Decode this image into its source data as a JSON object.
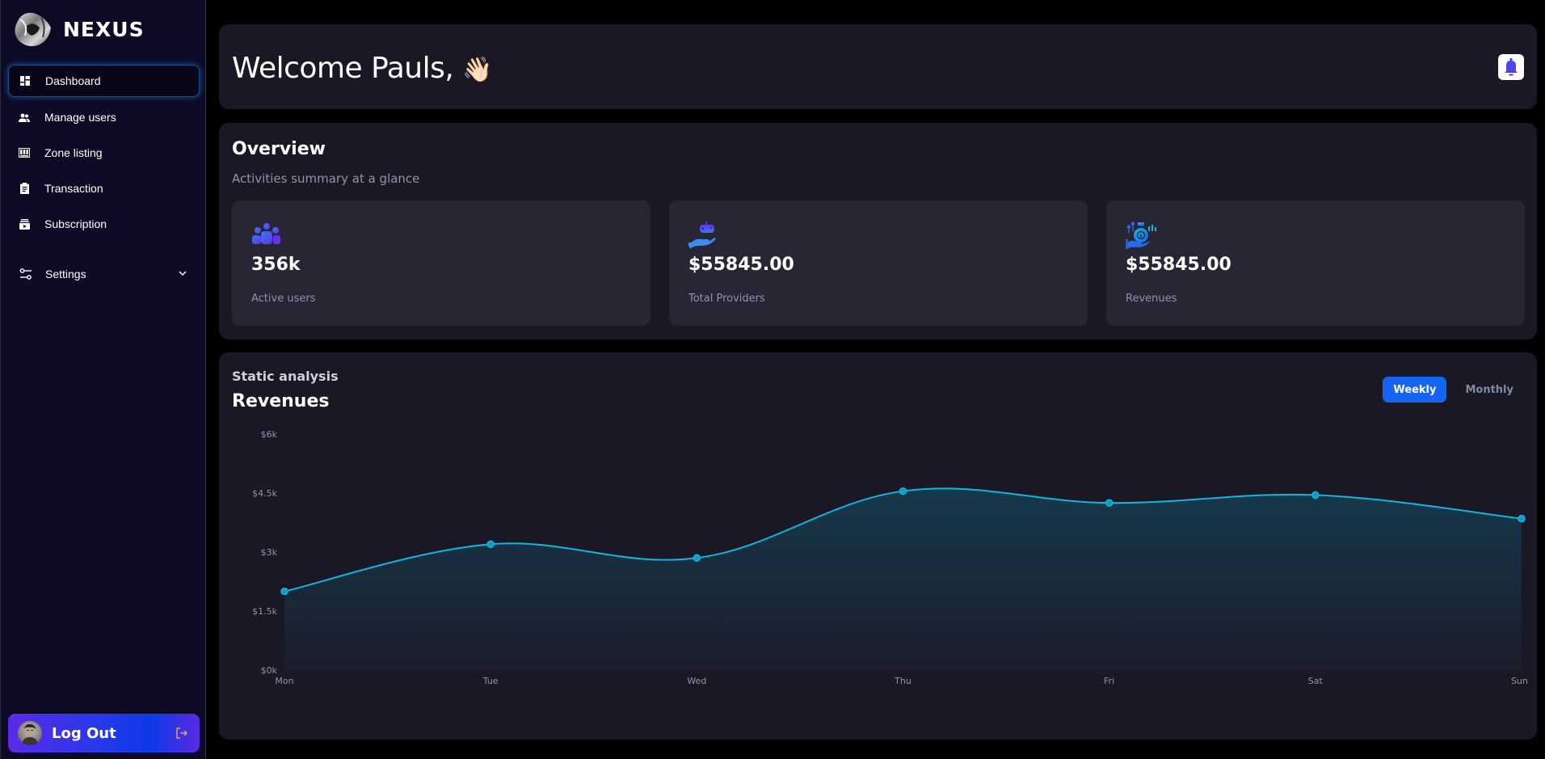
{
  "brand": {
    "name": "NEXUS"
  },
  "sidebar": {
    "items": [
      {
        "label": "Dashboard",
        "icon": "dashboard-icon",
        "active": true
      },
      {
        "label": "Manage users",
        "icon": "users-icon"
      },
      {
        "label": "Zone listing",
        "icon": "zone-icon"
      },
      {
        "label": "Transaction",
        "icon": "clipboard-icon"
      },
      {
        "label": "Subscription",
        "icon": "subscription-icon"
      }
    ],
    "settings": {
      "label": "Settings",
      "icon": "sliders-icon"
    },
    "logout": {
      "label": "Log Out"
    }
  },
  "header": {
    "welcome": "Welcome Pauls,",
    "emoji": "👋🏻"
  },
  "overview": {
    "title": "Overview",
    "subtitle": "Activities summary at a glance",
    "stats": [
      {
        "value": "356k",
        "label": "Active users",
        "icon": "users-group-icon"
      },
      {
        "value": "$55845.00",
        "label": "Total Providers",
        "icon": "gamepad-hand-icon"
      },
      {
        "value": "$55845.00",
        "label": "Revenues",
        "icon": "money-bag-icon"
      }
    ]
  },
  "analysis": {
    "subtitle": "Static analysis",
    "title": "Revenues",
    "tabs": [
      {
        "label": "Weekly",
        "active": true
      },
      {
        "label": "Monthly",
        "active": false
      }
    ]
  },
  "colors": {
    "accent": "#1565f5",
    "line": "#14b4dc",
    "sidebar_bg": "#0c0a25",
    "card_bg": "#1b1825",
    "stat_bg": "#282534"
  },
  "chart_data": {
    "type": "area",
    "title": "Revenues",
    "subtitle": "Static analysis",
    "categories": [
      "Mon",
      "Tue",
      "Wed",
      "Thu",
      "Fri",
      "Sat",
      "Sun"
    ],
    "values": [
      2000,
      3200,
      2850,
      4550,
      4250,
      4450,
      3850
    ],
    "y_ticks": [
      "$0k",
      "$1.5k",
      "$3k",
      "$4.5k",
      "$6k"
    ],
    "ylim": [
      0,
      6000
    ],
    "xlabel": "",
    "ylabel": "",
    "grid": false,
    "legend": false,
    "smooth": true
  }
}
